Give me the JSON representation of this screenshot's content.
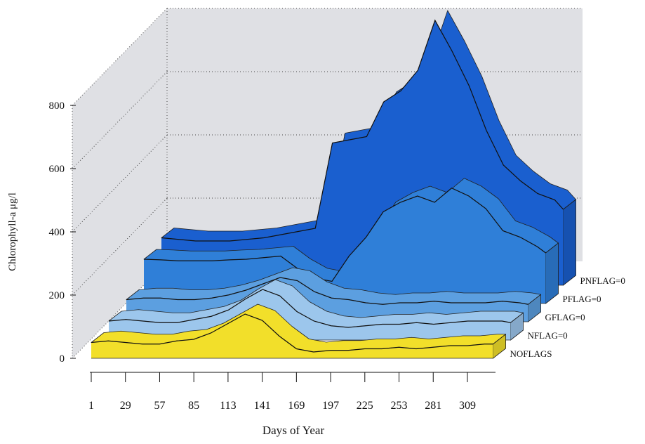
{
  "chart_data": {
    "type": "ribbon3d",
    "y_label": "Chlorophyll-a μg/l",
    "x_label": "Days of Year",
    "x": [
      1,
      15,
      29,
      43,
      57,
      71,
      85,
      99,
      113,
      127,
      141,
      155,
      169,
      183,
      197,
      211,
      225,
      239,
      253,
      267,
      281,
      295,
      309,
      323,
      330
    ],
    "series": [
      {
        "name": "NOFLAGS",
        "color": "#f2df2a",
        "values": [
          50,
          55,
          50,
          45,
          45,
          55,
          60,
          80,
          110,
          140,
          120,
          70,
          30,
          20,
          25,
          25,
          30,
          30,
          35,
          30,
          35,
          40,
          40,
          45,
          45
        ]
      },
      {
        "name": "NFLAG=0",
        "color": "#9cc6ec",
        "values": [
          60,
          65,
          60,
          55,
          55,
          65,
          75,
          95,
          130,
          160,
          140,
          90,
          60,
          45,
          40,
          45,
          50,
          50,
          55,
          50,
          55,
          60,
          60,
          60,
          55
        ]
      },
      {
        "name": "GFLAG=0",
        "color": "#5c9fe0",
        "values": [
          70,
          75,
          75,
          70,
          70,
          75,
          85,
          100,
          120,
          140,
          130,
          95,
          75,
          70,
          60,
          55,
          60,
          60,
          65,
          60,
          60,
          60,
          65,
          60,
          55
        ]
      },
      {
        "name": "PFLAG=0",
        "color": "#2f7fd8",
        "values": [
          140,
          138,
          135,
          135,
          135,
          138,
          140,
          145,
          150,
          110,
          80,
          70,
          150,
          210,
          290,
          320,
          340,
          320,
          365,
          340,
          300,
          230,
          210,
          180,
          160
        ]
      },
      {
        "name": "PNFLAG=0",
        "color": "#1a5fcf",
        "values": [
          150,
          145,
          140,
          140,
          140,
          145,
          150,
          160,
          170,
          180,
          450,
          460,
          470,
          580,
          615,
          680,
          838,
          740,
          630,
          490,
          380,
          330,
          290,
          270,
          240
        ]
      }
    ],
    "xlim": [
      1,
      332
    ],
    "xticks": [
      1,
      29,
      57,
      85,
      113,
      141,
      169,
      197,
      225,
      253,
      281,
      309
    ],
    "ylim": [
      0,
      800
    ],
    "yticks": [
      0,
      200,
      400,
      600,
      800
    ],
    "grid": true
  }
}
